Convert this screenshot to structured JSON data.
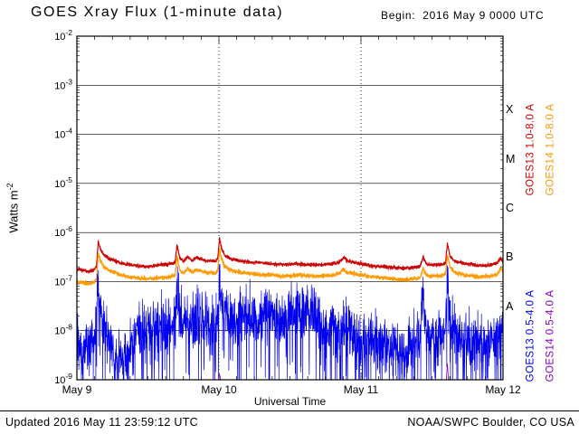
{
  "header": {
    "title": "GOES Xray Flux (1-minute data)",
    "begin": "Begin:  2016 May 9 0000 UTC"
  },
  "footer": {
    "updated": "Updated 2016 May 11 23:59:12 UTC",
    "credit": "NOAA/SWPC Boulder, CO USA"
  },
  "axes": {
    "ylabel_base": "Watts m",
    "ylabel_exponent": "-2",
    "xlabel": "Universal Time"
  },
  "flare_classes": [
    "X",
    "M",
    "C",
    "B",
    "A"
  ],
  "series_labels": [
    {
      "text": "GOES13 1.0-8.0 A",
      "color": "#cc0000"
    },
    {
      "text": "GOES14 1.0-8.0 A",
      "color": "#ff9900"
    },
    {
      "text": "GOES13 0.5-4.0 A",
      "color": "#0000ee"
    },
    {
      "text": "GOES14 0.5-4.0 A",
      "color": "#8800cc"
    }
  ],
  "chart_data": {
    "type": "line",
    "title": "GOES Xray Flux (1-minute data)",
    "xlabel": "Universal Time",
    "ylabel": "Watts m^-2",
    "x_axis": {
      "unit": "hours since 2016 May 9 0000 UTC",
      "range": [
        0,
        72
      ]
    },
    "y_axis": {
      "scale": "log10",
      "range": [
        1e-09,
        0.01
      ]
    },
    "x_ticks": [
      {
        "t": 0,
        "label": "May 9"
      },
      {
        "t": 24,
        "label": "May 10"
      },
      {
        "t": 48,
        "label": "May 11"
      },
      {
        "t": 72,
        "label": "May 12"
      }
    ],
    "y_tick_exponents": [
      -2,
      -3,
      -4,
      -5,
      -6,
      -7,
      -8,
      -9
    ],
    "grid": {
      "vertical_dashed_at": [
        24,
        48
      ],
      "horizontal_at_decades": true
    },
    "flare_class_bands": {
      "A": [
        1e-08,
        1e-07
      ],
      "B": [
        1e-07,
        1e-06
      ],
      "C": [
        1e-06,
        1e-05
      ],
      "M": [
        1e-05,
        0.0001
      ],
      "X": [
        0.0001,
        0.001
      ]
    },
    "series": [
      {
        "name": "GOES13 1.0-8.0 A",
        "color": "#cc0000",
        "stroke_width": 1.2,
        "noise_sd_log10": 0.018,
        "points": [
          [
            0,
            1.8e-07
          ],
          [
            1,
            1.7e-07
          ],
          [
            2,
            1.6e-07
          ],
          [
            3,
            1.8e-07
          ],
          [
            3.3,
            2e-07
          ],
          [
            3.6,
            6.5e-07
          ],
          [
            4.0,
            4.5e-07
          ],
          [
            4.6,
            3.4e-07
          ],
          [
            5.5,
            2.9e-07
          ],
          [
            6.5,
            2.6e-07
          ],
          [
            8,
            2.3e-07
          ],
          [
            10,
            2.1e-07
          ],
          [
            12,
            2e-07
          ],
          [
            13,
            2.1e-07
          ],
          [
            14,
            2.2e-07
          ],
          [
            15,
            2.2e-07
          ],
          [
            16,
            2.3e-07
          ],
          [
            16.6,
            2.4e-07
          ],
          [
            16.9,
            5.5e-07
          ],
          [
            17.4,
            3e-07
          ],
          [
            18,
            2.6e-07
          ],
          [
            18.8,
            3.2e-07
          ],
          [
            19.5,
            2.7e-07
          ],
          [
            20.2,
            3.1e-07
          ],
          [
            21,
            2.9e-07
          ],
          [
            21.8,
            2.6e-07
          ],
          [
            22.6,
            2.7e-07
          ],
          [
            23.4,
            2.5e-07
          ],
          [
            23.8,
            3e-07
          ],
          [
            24.1,
            7.5e-07
          ],
          [
            24.5,
            4.5e-07
          ],
          [
            25,
            3.4e-07
          ],
          [
            26,
            2.9e-07
          ],
          [
            27,
            2.7e-07
          ],
          [
            28,
            2.6e-07
          ],
          [
            29.5,
            2.5e-07
          ],
          [
            31,
            2.4e-07
          ],
          [
            33,
            2.3e-07
          ],
          [
            35,
            2.2e-07
          ],
          [
            37,
            2.3e-07
          ],
          [
            39,
            2.2e-07
          ],
          [
            41,
            2.2e-07
          ],
          [
            43,
            2.3e-07
          ],
          [
            44.3,
            2.5e-07
          ],
          [
            45.1,
            3.1e-07
          ],
          [
            45.8,
            2.6e-07
          ],
          [
            48,
            2.3e-07
          ],
          [
            50,
            2.1e-07
          ],
          [
            52,
            2e-07
          ],
          [
            54,
            1.9e-07
          ],
          [
            56,
            1.9e-07
          ],
          [
            58,
            2e-07
          ],
          [
            58.5,
            3.2e-07
          ],
          [
            59,
            2.3e-07
          ],
          [
            60,
            2.2e-07
          ],
          [
            61.5,
            2.2e-07
          ],
          [
            62.3,
            2.4e-07
          ],
          [
            62.6,
            6e-07
          ],
          [
            63.1,
            3.2e-07
          ],
          [
            64,
            2.6e-07
          ],
          [
            65,
            2.4e-07
          ],
          [
            66,
            2.3e-07
          ],
          [
            68,
            2.1e-07
          ],
          [
            70,
            2.2e-07
          ],
          [
            71,
            2.4e-07
          ],
          [
            71.6,
            3e-07
          ],
          [
            72,
            2.7e-07
          ]
        ]
      },
      {
        "name": "GOES14 1.0-8.0 A",
        "color": "#ff9900",
        "stroke_width": 1.2,
        "noise_sd_log10": 0.022,
        "points": [
          [
            0,
            1e-07
          ],
          [
            1,
            9.5e-08
          ],
          [
            2,
            9e-08
          ],
          [
            3,
            1e-07
          ],
          [
            3.3,
            1.1e-07
          ],
          [
            3.6,
            3.8e-07
          ],
          [
            4.0,
            2.6e-07
          ],
          [
            4.6,
            2e-07
          ],
          [
            5.5,
            1.7e-07
          ],
          [
            6.5,
            1.5e-07
          ],
          [
            8,
            1.3e-07
          ],
          [
            10,
            1.2e-07
          ],
          [
            12,
            1.1e-07
          ],
          [
            13,
            1.15e-07
          ],
          [
            14,
            1.2e-07
          ],
          [
            15,
            1.2e-07
          ],
          [
            16,
            1.3e-07
          ],
          [
            16.6,
            1.35e-07
          ],
          [
            16.9,
            3.2e-07
          ],
          [
            17.4,
            1.7e-07
          ],
          [
            18,
            1.5e-07
          ],
          [
            18.8,
            1.8e-07
          ],
          [
            19.5,
            1.55e-07
          ],
          [
            20.2,
            1.75e-07
          ],
          [
            21,
            1.65e-07
          ],
          [
            21.8,
            1.5e-07
          ],
          [
            22.6,
            1.55e-07
          ],
          [
            23.4,
            1.45e-07
          ],
          [
            23.8,
            1.7e-07
          ],
          [
            24.1,
            4.5e-07
          ],
          [
            24.5,
            2.7e-07
          ],
          [
            25,
            2e-07
          ],
          [
            26,
            1.7e-07
          ],
          [
            27,
            1.6e-07
          ],
          [
            28,
            1.5e-07
          ],
          [
            29.5,
            1.45e-07
          ],
          [
            31,
            1.4e-07
          ],
          [
            33,
            1.35e-07
          ],
          [
            35,
            1.3e-07
          ],
          [
            37,
            1.35e-07
          ],
          [
            39,
            1.3e-07
          ],
          [
            41,
            1.3e-07
          ],
          [
            43,
            1.35e-07
          ],
          [
            44.3,
            1.45e-07
          ],
          [
            45.1,
            1.8e-07
          ],
          [
            45.8,
            1.5e-07
          ],
          [
            48,
            1.35e-07
          ],
          [
            50,
            1.25e-07
          ],
          [
            52,
            1.2e-07
          ],
          [
            54,
            1.1e-07
          ],
          [
            56,
            1.1e-07
          ],
          [
            58,
            1.2e-07
          ],
          [
            58.5,
            1.9e-07
          ],
          [
            59,
            1.35e-07
          ],
          [
            60,
            1.3e-07
          ],
          [
            61.5,
            1.3e-07
          ],
          [
            62.3,
            1.4e-07
          ],
          [
            62.6,
            3.5e-07
          ],
          [
            63.1,
            1.9e-07
          ],
          [
            64,
            1.5e-07
          ],
          [
            65,
            1.4e-07
          ],
          [
            66,
            1.35e-07
          ],
          [
            68,
            1.25e-07
          ],
          [
            70,
            1.3e-07
          ],
          [
            71,
            1.4e-07
          ],
          [
            71.6,
            1.8e-07
          ],
          [
            72,
            1.6e-07
          ]
        ]
      },
      {
        "name": "GOES13 0.5-4.0 A",
        "color": "#0000ee",
        "stroke_width": 0.7,
        "noise_sd_log10": 0.28,
        "dip_prob": 0.08,
        "dip_depth_log10": 1.3,
        "points": [
          [
            0,
            8e-09
          ],
          [
            0.5,
            4e-09
          ],
          [
            1,
            2.5e-09
          ],
          [
            1.5,
            4e-09
          ],
          [
            2,
            3e-09
          ],
          [
            2.5,
            5e-09
          ],
          [
            3,
            7e-09
          ],
          [
            3.6,
            7e-08
          ],
          [
            4,
            2.5e-08
          ],
          [
            4.5,
            1.4e-08
          ],
          [
            5,
            9e-09
          ],
          [
            5.5,
            6e-09
          ],
          [
            6,
            4e-09
          ],
          [
            6.5,
            3e-09
          ],
          [
            7,
            2.5e-09
          ],
          [
            7.5,
            2e-09
          ],
          [
            8,
            2.5e-09
          ],
          [
            8.5,
            3e-09
          ],
          [
            9,
            4e-09
          ],
          [
            9.5,
            5e-09
          ],
          [
            10,
            7e-09
          ],
          [
            10.5,
            9e-09
          ],
          [
            11,
            1e-08
          ],
          [
            12,
            1.2e-08
          ],
          [
            13,
            1e-08
          ],
          [
            14,
            1.2e-08
          ],
          [
            15,
            1.4e-08
          ],
          [
            16,
            1.2e-08
          ],
          [
            16.6,
            1.3e-08
          ],
          [
            16.9,
            5.5e-08
          ],
          [
            17.4,
            2.2e-08
          ],
          [
            18,
            1.5e-08
          ],
          [
            18.8,
            1.8e-08
          ],
          [
            19.5,
            1.4e-08
          ],
          [
            20.2,
            1.6e-08
          ],
          [
            21,
            1.4e-08
          ],
          [
            22,
            1.2e-08
          ],
          [
            23,
            1.1e-08
          ],
          [
            23.8,
            1.4e-08
          ],
          [
            24.1,
            9e-08
          ],
          [
            24.5,
            3.5e-08
          ],
          [
            25,
            2.2e-08
          ],
          [
            26,
            1.8e-08
          ],
          [
            27,
            1.4e-08
          ],
          [
            28,
            1.8e-08
          ],
          [
            29,
            2.2e-08
          ],
          [
            30,
            1.8e-08
          ],
          [
            31,
            1.4e-08
          ],
          [
            32,
            1.8e-08
          ],
          [
            33,
            2.2e-08
          ],
          [
            34,
            1.8e-08
          ],
          [
            35,
            1.6e-08
          ],
          [
            36,
            2e-08
          ],
          [
            37,
            2.4e-08
          ],
          [
            38,
            2.8e-08
          ],
          [
            39,
            2.4e-08
          ],
          [
            40,
            2e-08
          ],
          [
            41,
            1.4e-08
          ],
          [
            42,
            9e-09
          ],
          [
            43,
            1.1e-08
          ],
          [
            44,
            7e-09
          ],
          [
            44.8,
            9e-09
          ],
          [
            45.1,
            1.6e-08
          ],
          [
            45.8,
            9e-09
          ],
          [
            48,
            6e-09
          ],
          [
            49,
            4.5e-09
          ],
          [
            50,
            6e-09
          ],
          [
            51,
            5e-09
          ],
          [
            52,
            4e-09
          ],
          [
            53,
            5e-09
          ],
          [
            54,
            4e-09
          ],
          [
            55,
            3.5e-09
          ],
          [
            56,
            5e-09
          ],
          [
            57,
            6e-09
          ],
          [
            58,
            7e-09
          ],
          [
            58.5,
            5e-08
          ],
          [
            59,
            9e-09
          ],
          [
            60,
            6e-09
          ],
          [
            61,
            6e-09
          ],
          [
            62.2,
            8e-09
          ],
          [
            62.6,
            9e-08
          ],
          [
            63.1,
            1.2e-08
          ],
          [
            64,
            8e-09
          ],
          [
            65,
            7e-09
          ],
          [
            66,
            6e-09
          ],
          [
            67,
            5e-09
          ],
          [
            68,
            6e-09
          ],
          [
            69,
            5e-09
          ],
          [
            70,
            6e-09
          ],
          [
            71,
            8e-09
          ],
          [
            72,
            9e-09
          ]
        ]
      },
      {
        "name": "GOES14 0.5-4.0 A",
        "color": "#8800cc",
        "stroke_width": 0.8,
        "noise_sd_log10": 0.02,
        "points": [
          [
            0,
            9e-10
          ],
          [
            23.9,
            9e-10
          ],
          [
            24.1,
            1.3e-09
          ],
          [
            24.3,
            9e-10
          ],
          [
            62.4,
            8e-10
          ],
          [
            62.6,
            2.2e-09
          ],
          [
            62.8,
            9e-10
          ],
          [
            72,
            9e-10
          ]
        ]
      }
    ]
  }
}
